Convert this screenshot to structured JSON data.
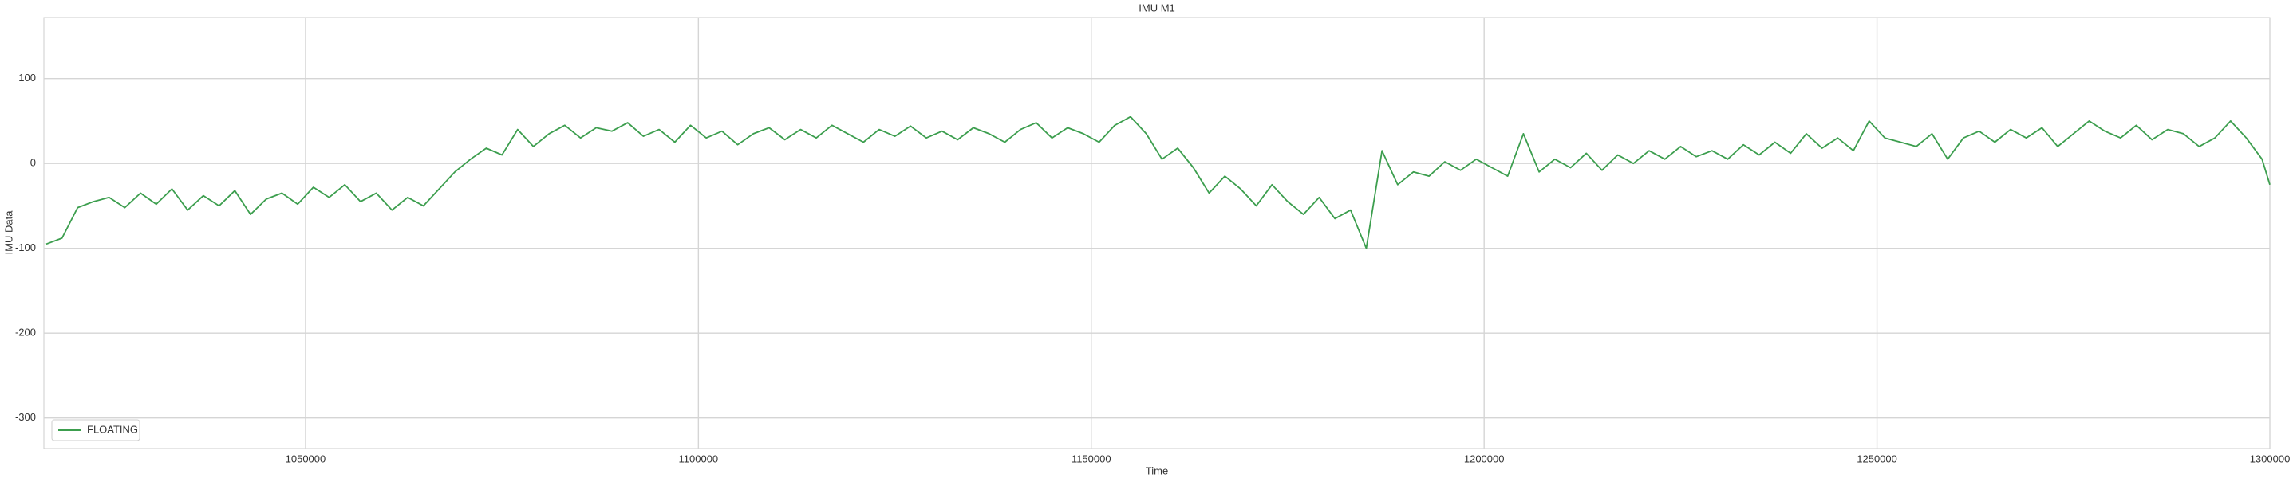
{
  "chart_data": {
    "type": "line",
    "title": "IMU M1",
    "x_label": "Time",
    "y_label": "IMU Data",
    "x": [
      1017000,
      1019000,
      1021000,
      1023000,
      1025000,
      1027000,
      1029000,
      1031000,
      1033000,
      1035000,
      1037000,
      1039000,
      1041000,
      1043000,
      1045000,
      1047000,
      1049000,
      1051000,
      1053000,
      1055000,
      1057000,
      1059000,
      1061000,
      1063000,
      1065000,
      1067000,
      1069000,
      1071000,
      1073000,
      1075000,
      1077000,
      1079000,
      1081000,
      1083000,
      1085000,
      1087000,
      1089000,
      1091000,
      1093000,
      1095000,
      1097000,
      1099000,
      1101000,
      1103000,
      1105000,
      1107000,
      1109000,
      1111000,
      1113000,
      1115000,
      1117000,
      1119000,
      1121000,
      1123000,
      1125000,
      1127000,
      1129000,
      1131000,
      1133000,
      1135000,
      1137000,
      1139000,
      1141000,
      1143000,
      1145000,
      1147000,
      1149000,
      1151000,
      1153000,
      1155000,
      1157000,
      1159000,
      1161000,
      1163000,
      1165000,
      1167000,
      1169000,
      1171000,
      1173000,
      1175000,
      1177000,
      1179000,
      1181000,
      1183000,
      1185000,
      1187000,
      1189000,
      1191000,
      1193000,
      1195000,
      1197000,
      1199000,
      1201000,
      1203000,
      1205000,
      1207000,
      1209000,
      1211000,
      1213000,
      1215000,
      1217000,
      1219000,
      1221000,
      1223000,
      1225000,
      1227000,
      1229000,
      1231000,
      1233000,
      1235000,
      1237000,
      1239000,
      1241000,
      1243000,
      1245000,
      1247000,
      1249000,
      1251000,
      1253000,
      1255000,
      1257000,
      1259000,
      1261000,
      1263000,
      1265000,
      1267000,
      1269000,
      1271000,
      1273000,
      1275000,
      1277000,
      1279000,
      1281000,
      1283000,
      1285000,
      1287000,
      1289000,
      1291000,
      1293000,
      1295000,
      1297000,
      1299000,
      1300000
    ],
    "series": [
      {
        "name": "FLOATING",
        "color": "#3c9e4e",
        "values": [
          -95,
          -88,
          -52,
          -45,
          -40,
          -52,
          -35,
          -48,
          -30,
          -55,
          -38,
          -50,
          -32,
          -60,
          -42,
          -35,
          -48,
          -28,
          -40,
          -25,
          -45,
          -35,
          -55,
          -40,
          -50,
          -30,
          -10,
          5,
          18,
          10,
          40,
          20,
          35,
          45,
          30,
          42,
          38,
          48,
          32,
          40,
          25,
          45,
          30,
          38,
          22,
          35,
          42,
          28,
          40,
          30,
          45,
          35,
          25,
          40,
          32,
          44,
          30,
          38,
          28,
          42,
          35,
          25,
          40,
          48,
          30,
          42,
          35,
          25,
          45,
          55,
          35,
          5,
          18,
          -5,
          -35,
          -15,
          -30,
          -50,
          -25,
          -45,
          -60,
          -40,
          -65,
          -55,
          -100,
          15,
          -25,
          -10,
          -15,
          2,
          -8,
          5,
          -5,
          -15,
          35,
          -10,
          5,
          -5,
          12,
          -8,
          10,
          0,
          15,
          5,
          20,
          8,
          15,
          5,
          22,
          10,
          25,
          12,
          35,
          18,
          30,
          15,
          50,
          30,
          25,
          20,
          35,
          5,
          30,
          38,
          25,
          40,
          30,
          42,
          20,
          35,
          50,
          38,
          30,
          45,
          28,
          40,
          35,
          20,
          30,
          50,
          30,
          5,
          -25
        ]
      }
    ],
    "xlim": [
      1016700,
      1300000
    ],
    "ylim": [
      -336,
      172
    ],
    "xticks": [
      1050000,
      1100000,
      1150000,
      1200000,
      1250000,
      1300000
    ],
    "yticks": [
      -300,
      -200,
      -100,
      0,
      100
    ],
    "grid": true,
    "legend": "lower left"
  }
}
